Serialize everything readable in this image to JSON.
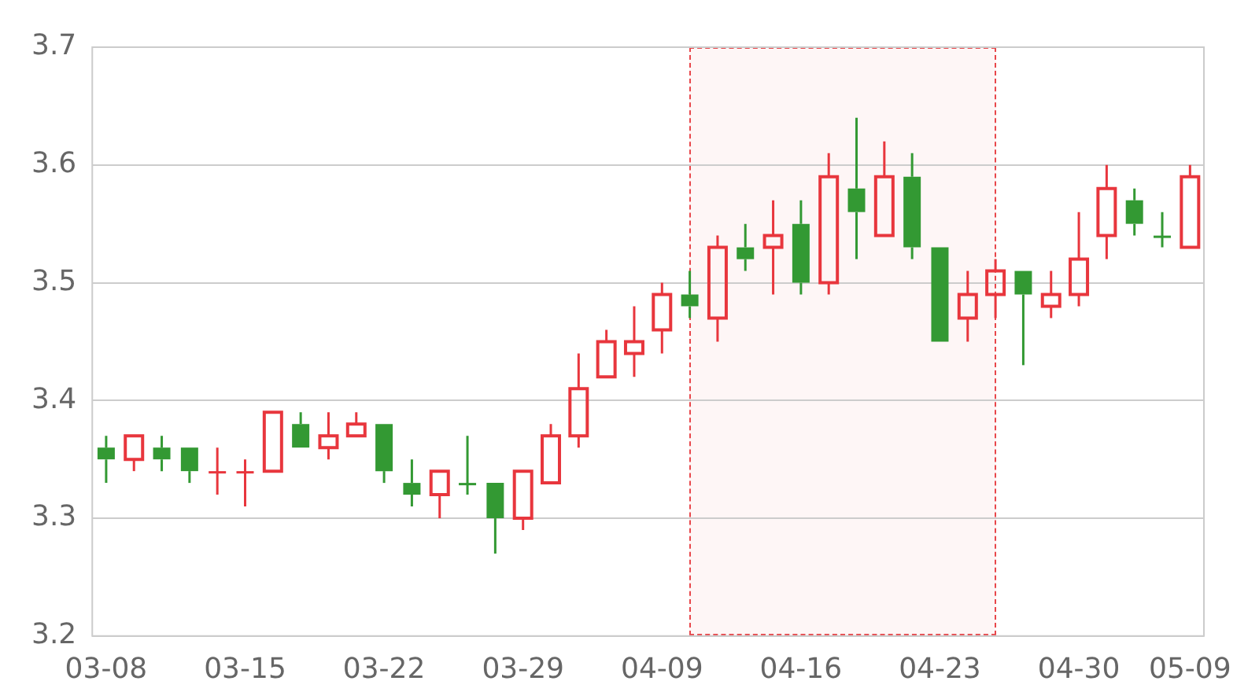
{
  "chart_data": {
    "type": "candlestick",
    "categories": [
      "03-08",
      null,
      null,
      null,
      null,
      "03-15",
      null,
      null,
      null,
      null,
      "03-22",
      null,
      null,
      null,
      null,
      "03-29",
      null,
      null,
      null,
      null,
      "04-09",
      null,
      null,
      null,
      null,
      "04-16",
      null,
      null,
      null,
      null,
      "04-23",
      null,
      null,
      null,
      null,
      "04-30",
      null,
      null,
      null,
      "05-09"
    ],
    "ohlc": [
      [
        3.36,
        3.37,
        3.33,
        3.35
      ],
      [
        3.35,
        3.37,
        3.34,
        3.37
      ],
      [
        3.36,
        3.37,
        3.34,
        3.35
      ],
      [
        3.36,
        3.36,
        3.33,
        3.34
      ],
      [
        3.34,
        3.36,
        3.32,
        3.34
      ],
      [
        3.34,
        3.35,
        3.31,
        3.34
      ],
      [
        3.34,
        3.39,
        3.34,
        3.39
      ],
      [
        3.38,
        3.39,
        3.36,
        3.36
      ],
      [
        3.36,
        3.39,
        3.35,
        3.37
      ],
      [
        3.37,
        3.39,
        3.37,
        3.38
      ],
      [
        3.38,
        3.38,
        3.33,
        3.34
      ],
      [
        3.33,
        3.35,
        3.31,
        3.32
      ],
      [
        3.32,
        3.34,
        3.3,
        3.34
      ],
      [
        3.33,
        3.37,
        3.32,
        3.33
      ],
      [
        3.33,
        3.33,
        3.27,
        3.3
      ],
      [
        3.3,
        3.34,
        3.29,
        3.34
      ],
      [
        3.33,
        3.38,
        3.33,
        3.37
      ],
      [
        3.37,
        3.44,
        3.36,
        3.41
      ],
      [
        3.42,
        3.46,
        3.42,
        3.45
      ],
      [
        3.44,
        3.48,
        3.42,
        3.45
      ],
      [
        3.46,
        3.5,
        3.44,
        3.49
      ],
      [
        3.49,
        3.51,
        3.47,
        3.48
      ],
      [
        3.47,
        3.54,
        3.45,
        3.53
      ],
      [
        3.53,
        3.55,
        3.51,
        3.52
      ],
      [
        3.53,
        3.57,
        3.49,
        3.54
      ],
      [
        3.55,
        3.57,
        3.49,
        3.5
      ],
      [
        3.5,
        3.61,
        3.49,
        3.59
      ],
      [
        3.58,
        3.64,
        3.52,
        3.56
      ],
      [
        3.54,
        3.62,
        3.54,
        3.59
      ],
      [
        3.59,
        3.61,
        3.52,
        3.53
      ],
      [
        3.53,
        3.53,
        3.45,
        3.45
      ],
      [
        3.47,
        3.51,
        3.45,
        3.49
      ],
      [
        3.49,
        3.52,
        3.47,
        3.51
      ],
      [
        3.51,
        3.51,
        3.43,
        3.49
      ],
      [
        3.48,
        3.51,
        3.47,
        3.49
      ],
      [
        3.49,
        3.56,
        3.48,
        3.52
      ],
      [
        3.54,
        3.6,
        3.52,
        3.58
      ],
      [
        3.57,
        3.58,
        3.54,
        3.55
      ],
      [
        3.54,
        3.56,
        3.53,
        3.54
      ],
      [
        3.53,
        3.6,
        3.53,
        3.59
      ]
    ],
    "colors": [
      "#339933",
      "#e8363d",
      "#339933",
      "#339933",
      "#e8363d",
      "#e8363d",
      "#e8363d",
      "#339933",
      "#e8363d",
      "#e8363d",
      "#339933",
      "#339933",
      "#e8363d",
      "#339933",
      "#339933",
      "#e8363d",
      "#e8363d",
      "#e8363d",
      "#e8363d",
      "#e8363d",
      "#e8363d",
      "#339933",
      "#e8363d",
      "#339933",
      "#e8363d",
      "#339933",
      "#e8363d",
      "#339933",
      "#e8363d",
      "#339933",
      "#339933",
      "#e8363d",
      "#e8363d",
      "#339933",
      "#e8363d",
      "#e8363d",
      "#e8363d",
      "#339933",
      "#339933",
      "#e8363d"
    ],
    "ylim": [
      3.2,
      3.7
    ],
    "yticks": [
      3.2,
      3.3,
      3.4,
      3.5,
      3.6,
      3.7
    ],
    "grid": "y",
    "legend": false
  }
}
